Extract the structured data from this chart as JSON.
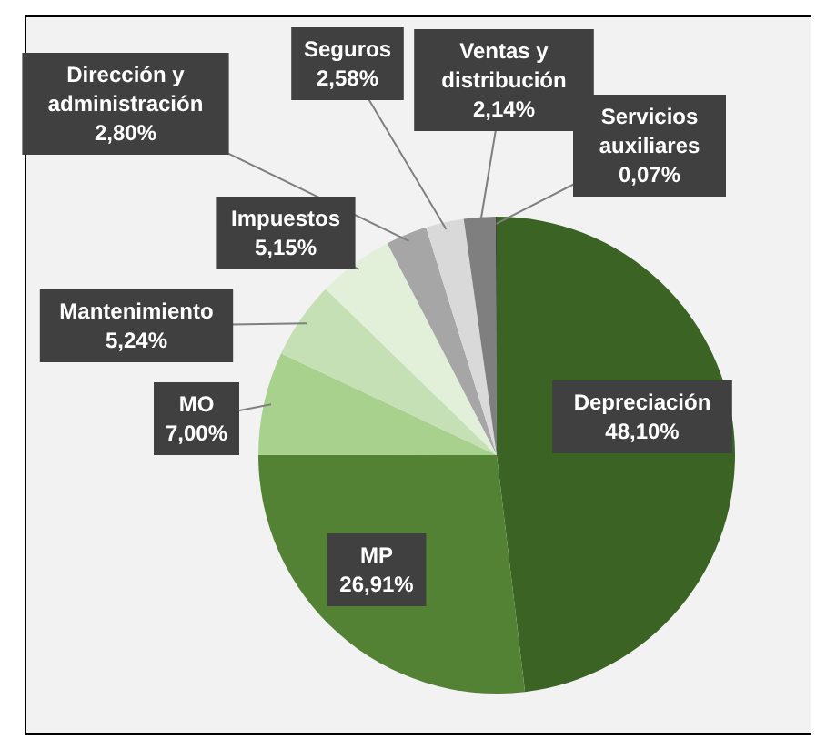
{
  "chart_data": {
    "type": "pie",
    "categories": [
      "Depreciación",
      "MP",
      "MO",
      "Mantenimiento",
      "Impuestos",
      "Dirección y administración",
      "Seguros",
      "Ventas y distribución",
      "Servicios auxiliares"
    ],
    "values": [
      48.1,
      26.91,
      7.0,
      5.24,
      5.15,
      2.8,
      2.58,
      2.14,
      0.07
    ],
    "value_labels": [
      "48,10%",
      "26,91%",
      "7,00%",
      "5,24%",
      "5,15%",
      "2,80%",
      "2,58%",
      "2,14%",
      "0,07%"
    ],
    "colors": [
      "#3b6324",
      "#548235",
      "#a9d18e",
      "#c5e0b4",
      "#e2f0d9",
      "#a6a6a6",
      "#d9d9d9",
      "#7f7f7f",
      "#404040"
    ]
  }
}
